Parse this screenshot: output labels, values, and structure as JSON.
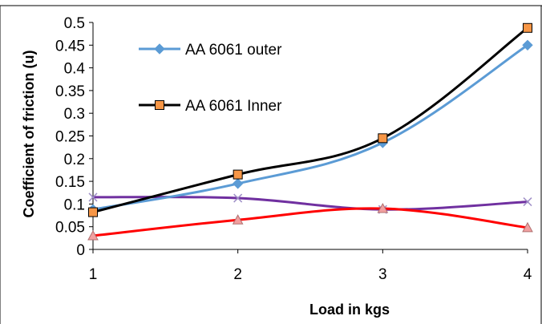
{
  "chart_data": {
    "type": "line",
    "title": "",
    "xlabel": "Load in kgs",
    "ylabel": "Coefficient of friction (u)",
    "x": [
      1,
      2,
      3,
      4
    ],
    "x_tick_labels": [
      "1",
      "2",
      "3",
      "4"
    ],
    "y_tick_labels": [
      "0",
      "0.05",
      "0.1",
      "0.15",
      "0.2",
      "0.25",
      "0.3",
      "0.35",
      "0.4",
      "0.45",
      "0.5"
    ],
    "ylim": [
      0,
      0.5
    ],
    "grid": false,
    "legend_placement": "top-left",
    "series": [
      {
        "name": "AA 6061 outer",
        "values": [
          0.088,
          0.145,
          0.235,
          0.45
        ],
        "color": "#5b9bd5",
        "marker": "diamond",
        "in_legend": true
      },
      {
        "name": "AA 6061 Inner",
        "values": [
          0.082,
          0.165,
          0.245,
          0.488
        ],
        "color": "#000000",
        "marker": "square",
        "marker_fill": "#f79646",
        "in_legend": true
      },
      {
        "values": [
          0.03,
          0.065,
          0.09,
          0.048
        ],
        "color": "#ff0000",
        "marker": "triangle",
        "marker_fill": "#f2a0a0",
        "in_legend": false
      },
      {
        "values": [
          0.115,
          0.113,
          0.088,
          0.105
        ],
        "color": "#7030a0",
        "marker": "x",
        "in_legend": false
      }
    ]
  }
}
